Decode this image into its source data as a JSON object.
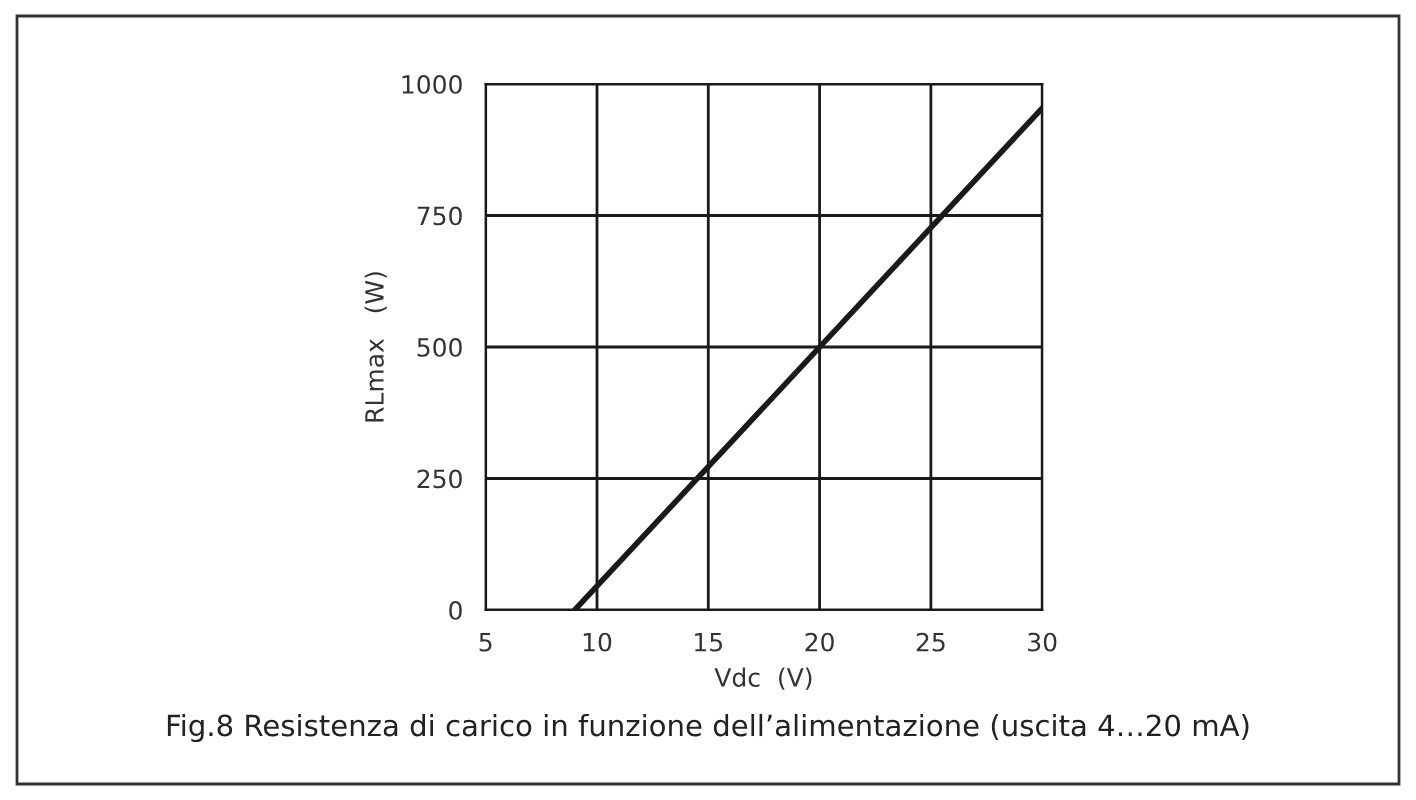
{
  "chart_data": {
    "type": "line",
    "xlabel": "Vdc  (V)",
    "ylabel": "RLmax   (W)",
    "x": [
      9,
      30
    ],
    "series": [
      {
        "color": "#1a1a1a",
        "values": [
          0,
          954
        ]
      }
    ],
    "xlim": [
      5,
      30
    ],
    "ylim": [
      0,
      1000
    ],
    "xticks": [
      5,
      10,
      15,
      20,
      25,
      30
    ],
    "yticks": [
      0,
      250,
      500,
      750,
      1000
    ],
    "grid": true,
    "marker": "none",
    "line_style": "solid",
    "annotations": [
      "Fig.8 Resistenza di carico in funzione dell’alimentazione (uscita 4…20 mA)"
    ]
  }
}
